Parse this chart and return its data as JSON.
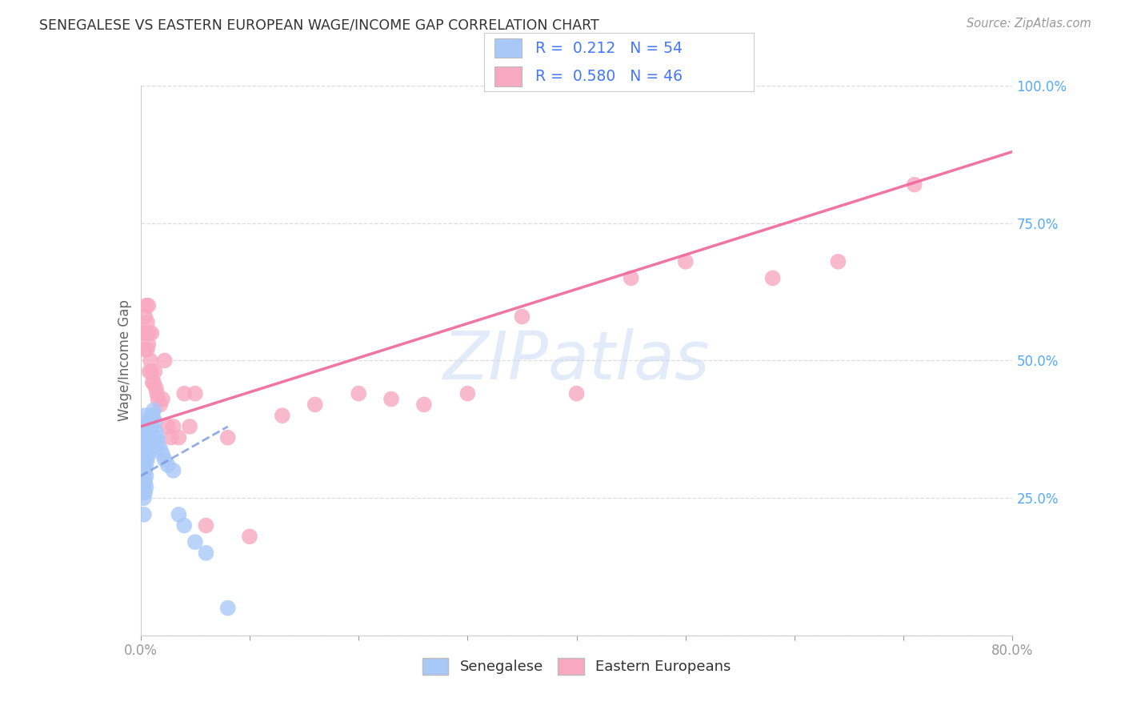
{
  "title": "SENEGALESE VS EASTERN EUROPEAN WAGE/INCOME GAP CORRELATION CHART",
  "source": "Source: ZipAtlas.com",
  "ylabel": "Wage/Income Gap",
  "xlim": [
    0.0,
    0.8
  ],
  "ylim": [
    0.0,
    1.0
  ],
  "xtick_positions": [
    0.0,
    0.1,
    0.2,
    0.3,
    0.4,
    0.5,
    0.6,
    0.7,
    0.8
  ],
  "xtick_labels": [
    "0.0%",
    "",
    "",
    "",
    "",
    "",
    "",
    "",
    "80.0%"
  ],
  "ytick_positions": [
    0.0,
    0.25,
    0.5,
    0.75,
    1.0
  ],
  "ytick_labels": [
    "",
    "25.0%",
    "50.0%",
    "75.0%",
    "100.0%"
  ],
  "background_color": "#ffffff",
  "grid_color": "#dddddd",
  "title_color": "#333333",
  "axis_label_color": "#55aaff",
  "watermark": "ZIPatlas",
  "watermark_color": "#c5d8f5",
  "senegalese_color": "#a8c8f8",
  "eastern_color": "#f8a8c0",
  "senegalese_line_color": "#7799dd",
  "eastern_line_color": "#ee6699",
  "senegalese_R": "0.212",
  "senegalese_N": "54",
  "eastern_R": "0.580",
  "eastern_N": "46",
  "legend_text_color": "#4477ff",
  "senegalese_x": [
    0.002,
    0.002,
    0.002,
    0.003,
    0.003,
    0.003,
    0.003,
    0.003,
    0.003,
    0.003,
    0.004,
    0.004,
    0.004,
    0.004,
    0.004,
    0.004,
    0.004,
    0.004,
    0.005,
    0.005,
    0.005,
    0.005,
    0.005,
    0.005,
    0.006,
    0.006,
    0.006,
    0.006,
    0.007,
    0.007,
    0.007,
    0.007,
    0.008,
    0.008,
    0.009,
    0.009,
    0.01,
    0.01,
    0.011,
    0.012,
    0.013,
    0.014,
    0.015,
    0.016,
    0.018,
    0.02,
    0.022,
    0.025,
    0.03,
    0.035,
    0.04,
    0.05,
    0.06,
    0.08
  ],
  "senegalese_y": [
    0.3,
    0.28,
    0.26,
    0.35,
    0.33,
    0.31,
    0.29,
    0.27,
    0.25,
    0.22,
    0.4,
    0.38,
    0.36,
    0.34,
    0.32,
    0.3,
    0.28,
    0.26,
    0.37,
    0.35,
    0.33,
    0.31,
    0.29,
    0.27,
    0.38,
    0.36,
    0.34,
    0.32,
    0.39,
    0.37,
    0.35,
    0.33,
    0.38,
    0.36,
    0.37,
    0.35,
    0.4,
    0.38,
    0.4,
    0.41,
    0.39,
    0.37,
    0.36,
    0.35,
    0.34,
    0.33,
    0.32,
    0.31,
    0.3,
    0.22,
    0.2,
    0.17,
    0.15,
    0.05
  ],
  "eastern_x": [
    0.003,
    0.004,
    0.004,
    0.005,
    0.005,
    0.006,
    0.006,
    0.007,
    0.007,
    0.008,
    0.008,
    0.009,
    0.01,
    0.01,
    0.011,
    0.012,
    0.013,
    0.014,
    0.015,
    0.016,
    0.018,
    0.02,
    0.022,
    0.025,
    0.028,
    0.03,
    0.035,
    0.04,
    0.045,
    0.05,
    0.06,
    0.08,
    0.1,
    0.13,
    0.16,
    0.2,
    0.23,
    0.26,
    0.3,
    0.35,
    0.4,
    0.45,
    0.5,
    0.58,
    0.64,
    0.71
  ],
  "eastern_y": [
    0.55,
    0.58,
    0.52,
    0.6,
    0.55,
    0.57,
    0.52,
    0.6,
    0.53,
    0.55,
    0.48,
    0.5,
    0.55,
    0.48,
    0.46,
    0.46,
    0.48,
    0.45,
    0.44,
    0.43,
    0.42,
    0.43,
    0.5,
    0.38,
    0.36,
    0.38,
    0.36,
    0.44,
    0.38,
    0.44,
    0.2,
    0.36,
    0.18,
    0.4,
    0.42,
    0.44,
    0.43,
    0.42,
    0.44,
    0.58,
    0.44,
    0.65,
    0.68,
    0.65,
    0.68,
    0.82
  ],
  "sen_line_x0": 0.0,
  "sen_line_y0": 0.29,
  "sen_line_x1": 0.08,
  "sen_line_y1": 0.38,
  "east_line_x0": 0.0,
  "east_line_y0": 0.38,
  "east_line_x1": 0.8,
  "east_line_y1": 0.88
}
